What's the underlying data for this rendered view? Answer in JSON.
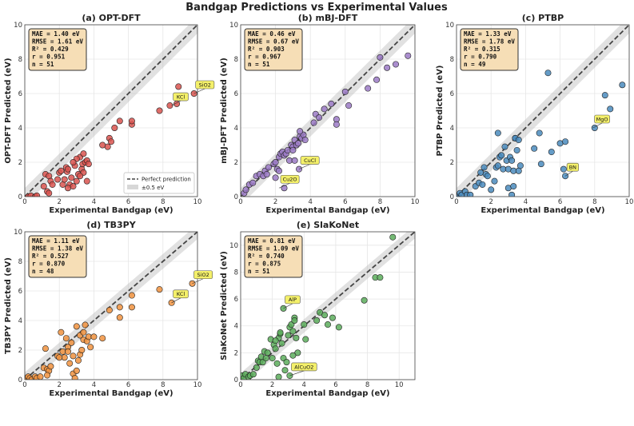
{
  "figure_title": "Bandgap Predictions vs Experimental Values",
  "legend": {
    "perfect": "Perfect prediction",
    "band": "±0.5 eV"
  },
  "chart_data": [
    {
      "type": "scatter",
      "title": "(a) OPT-DFT",
      "xlabel": "Experimental Bandgap (eV)",
      "ylabel": "OPT-DFT Predicted (eV)",
      "xlim": [
        0,
        10
      ],
      "ylim": [
        0,
        10
      ],
      "xticks": [
        0,
        2,
        4,
        6,
        8,
        10
      ],
      "yticks": [
        0,
        2,
        4,
        6,
        8,
        10
      ],
      "color": "#d9534f",
      "stats": [
        "MAE = 1.40 eV",
        "RMSE = 1.61 eV",
        "R² = 0.429",
        "r = 0.951",
        "n = 51"
      ],
      "points": [
        [
          0.2,
          0.0
        ],
        [
          0.35,
          0.05
        ],
        [
          0.6,
          0.0
        ],
        [
          0.7,
          0.05
        ],
        [
          1.1,
          0.6
        ],
        [
          1.3,
          0.3
        ],
        [
          1.4,
          0.2
        ],
        [
          1.2,
          1.3
        ],
        [
          1.4,
          1.2
        ],
        [
          1.5,
          0.9
        ],
        [
          1.6,
          0.7
        ],
        [
          2.0,
          1.4
        ],
        [
          2.1,
          1.5
        ],
        [
          2.2,
          0.7
        ],
        [
          2.3,
          1.0
        ],
        [
          2.4,
          1.7
        ],
        [
          2.45,
          1.45
        ],
        [
          2.5,
          1.6
        ],
        [
          2.6,
          0.7
        ],
        [
          2.7,
          1.1
        ],
        [
          2.8,
          0.6
        ],
        [
          2.9,
          1.8
        ],
        [
          3.0,
          0.9
        ],
        [
          3.1,
          1.3
        ],
        [
          3.2,
          2.3
        ],
        [
          3.3,
          1.6
        ],
        [
          3.35,
          1.9
        ],
        [
          3.4,
          1.4
        ],
        [
          3.5,
          2.0
        ],
        [
          3.6,
          2.1
        ],
        [
          3.7,
          1.9
        ],
        [
          3.0,
          2.2
        ],
        [
          2.8,
          2.0
        ],
        [
          3.4,
          2.5
        ],
        [
          3.2,
          1.2
        ],
        [
          3.6,
          0.9
        ],
        [
          2.5,
          0.5
        ],
        [
          1.9,
          1.0
        ],
        [
          4.9,
          3.4
        ],
        [
          5.2,
          4.0
        ],
        [
          5.5,
          4.4
        ],
        [
          6.2,
          4.2
        ],
        [
          6.2,
          4.4
        ],
        [
          4.8,
          2.9
        ],
        [
          7.8,
          5.0
        ],
        [
          8.4,
          5.3
        ],
        [
          8.8,
          5.4
        ],
        [
          8.9,
          6.4
        ],
        [
          9.8,
          6.0
        ],
        [
          4.5,
          3.0
        ],
        [
          5.0,
          3.2
        ]
      ],
      "callouts": [
        {
          "text": "KCl",
          "x": 8.5,
          "y": 5.3
        },
        {
          "text": "SiO2",
          "x": 9.8,
          "y": 6.0
        }
      ],
      "show_legend": true
    },
    {
      "type": "scatter",
      "title": "(b) mBJ-DFT",
      "xlabel": "Experimental Bandgap (eV)",
      "ylabel": "mBJ-DFT Predicted (eV)",
      "xlim": [
        0,
        10
      ],
      "ylim": [
        0,
        10
      ],
      "xticks": [
        0,
        2,
        4,
        6,
        8,
        10
      ],
      "yticks": [
        0,
        2,
        4,
        6,
        8,
        10
      ],
      "color": "#9b7ac6",
      "stats": [
        "MAE = 0.46 eV",
        "RMSE = 0.67 eV",
        "R² = 0.903",
        "r = 0.967",
        "n = 51"
      ],
      "points": [
        [
          0.2,
          0.2
        ],
        [
          0.3,
          0.4
        ],
        [
          0.5,
          0.7
        ],
        [
          0.7,
          0.8
        ],
        [
          0.9,
          1.2
        ],
        [
          1.1,
          1.3
        ],
        [
          1.3,
          1.2
        ],
        [
          1.4,
          1.5
        ],
        [
          1.6,
          1.7
        ],
        [
          1.9,
          1.9
        ],
        [
          2.0,
          2.0
        ],
        [
          2.1,
          1.6
        ],
        [
          2.2,
          2.3
        ],
        [
          2.3,
          2.5
        ],
        [
          2.4,
          2.6
        ],
        [
          2.5,
          2.4
        ],
        [
          2.6,
          2.5
        ],
        [
          2.7,
          2.7
        ],
        [
          2.8,
          2.1
        ],
        [
          2.9,
          3.0
        ],
        [
          3.0,
          2.9
        ],
        [
          3.1,
          3.3
        ],
        [
          3.2,
          3.0
        ],
        [
          3.3,
          3.1
        ],
        [
          3.4,
          3.5
        ],
        [
          3.5,
          3.4
        ],
        [
          3.6,
          3.6
        ],
        [
          3.7,
          3.3
        ],
        [
          3.1,
          2.1
        ],
        [
          3.35,
          1.6
        ],
        [
          2.5,
          0.5
        ],
        [
          1.5,
          1.3
        ],
        [
          2.0,
          1.1
        ],
        [
          3.0,
          2.7
        ],
        [
          3.4,
          3.8
        ],
        [
          4.3,
          4.8
        ],
        [
          4.2,
          4.3
        ],
        [
          4.8,
          5.1
        ],
        [
          5.2,
          5.4
        ],
        [
          5.5,
          4.5
        ],
        [
          5.5,
          4.2
        ],
        [
          6.0,
          6.1
        ],
        [
          6.2,
          5.3
        ],
        [
          7.3,
          6.3
        ],
        [
          7.8,
          6.8
        ],
        [
          8.4,
          7.5
        ],
        [
          8.9,
          7.7
        ],
        [
          9.6,
          8.2
        ],
        [
          8.0,
          8.1
        ],
        [
          4.5,
          4.6
        ],
        [
          2.2,
          1.5
        ]
      ],
      "callouts": [
        {
          "text": "CuCl",
          "x": 3.35,
          "y": 1.6
        },
        {
          "text": "Cu2O",
          "x": 2.2,
          "y": 0.5
        }
      ],
      "show_legend": false
    },
    {
      "type": "scatter",
      "title": "(c) PTBP",
      "xlabel": "Experimental Bandgap (eV)",
      "ylabel": "PTBP Predicted (eV)",
      "xlim": [
        0,
        10
      ],
      "ylim": [
        0,
        10
      ],
      "xticks": [
        0,
        2,
        4,
        6,
        8,
        10
      ],
      "yticks": [
        0,
        2,
        4,
        6,
        8,
        10
      ],
      "color": "#4a8bbd",
      "stats": [
        "MAE = 1.33 eV",
        "RMSE = 1.78 eV",
        "R² = 0.315",
        "r = 0.790",
        "n = 49"
      ],
      "points": [
        [
          0.1,
          0.0
        ],
        [
          0.2,
          0.2
        ],
        [
          0.3,
          0.1
        ],
        [
          0.5,
          0.3
        ],
        [
          0.6,
          0.1
        ],
        [
          0.8,
          0.1
        ],
        [
          1.1,
          0.6
        ],
        [
          1.3,
          0.8
        ],
        [
          1.4,
          1.4
        ],
        [
          1.5,
          0.7
        ],
        [
          1.6,
          1.7
        ],
        [
          1.7,
          1.3
        ],
        [
          1.8,
          1.2
        ],
        [
          2.0,
          0.4
        ],
        [
          2.3,
          1.7
        ],
        [
          2.4,
          1.8
        ],
        [
          2.5,
          2.3
        ],
        [
          2.6,
          2.4
        ],
        [
          2.7,
          1.6
        ],
        [
          2.8,
          2.9
        ],
        [
          2.9,
          2.1
        ],
        [
          3.0,
          1.6
        ],
        [
          3.1,
          2.3
        ],
        [
          3.2,
          2.1
        ],
        [
          3.3,
          1.5
        ],
        [
          3.4,
          3.4
        ],
        [
          3.5,
          2.7
        ],
        [
          3.6,
          1.5
        ],
        [
          3.7,
          1.8
        ],
        [
          3.0,
          0.5
        ],
        [
          3.2,
          0.1
        ],
        [
          3.3,
          0.6
        ],
        [
          2.2,
          0.9
        ],
        [
          2.4,
          3.7
        ],
        [
          3.4,
          3.4
        ],
        [
          3.6,
          3.3
        ],
        [
          4.5,
          2.8
        ],
        [
          4.8,
          3.7
        ],
        [
          5.5,
          2.6
        ],
        [
          5.3,
          7.2
        ],
        [
          6.0,
          3.1
        ],
        [
          6.3,
          3.2
        ],
        [
          6.2,
          1.6
        ],
        [
          6.3,
          1.2
        ],
        [
          8.0,
          4.0
        ],
        [
          8.6,
          5.9
        ],
        [
          8.9,
          5.1
        ],
        [
          9.6,
          6.5
        ],
        [
          4.9,
          1.9
        ]
      ],
      "callouts": [
        {
          "text": "MgO",
          "x": 7.9,
          "y": 4.0
        },
        {
          "text": "BN",
          "x": 6.3,
          "y": 1.2
        }
      ],
      "show_legend": false
    },
    {
      "type": "scatter",
      "title": "(d) TB3PY",
      "xlabel": "Experimental Bandgap (eV)",
      "ylabel": "TB3PY Predicted (eV)",
      "xlim": [
        0,
        10
      ],
      "ylim": [
        0,
        10
      ],
      "xticks": [
        0,
        2,
        4,
        6,
        8,
        10
      ],
      "yticks": [
        0,
        2,
        4,
        6,
        8,
        10
      ],
      "color": "#f0923e",
      "stats": [
        "MAE = 1.11 eV",
        "RMSE = 1.38 eV",
        "R² = 0.527",
        "r = 0.870",
        "n = 48"
      ],
      "points": [
        [
          0.1,
          0.1
        ],
        [
          0.2,
          0.2
        ],
        [
          0.3,
          0.1
        ],
        [
          0.4,
          0.0
        ],
        [
          0.6,
          0.2
        ],
        [
          0.7,
          0.1
        ],
        [
          0.9,
          0.2
        ],
        [
          1.1,
          0.8
        ],
        [
          1.2,
          2.1
        ],
        [
          1.3,
          0.7
        ],
        [
          1.4,
          0.6
        ],
        [
          1.5,
          0.9
        ],
        [
          1.9,
          1.6
        ],
        [
          2.1,
          3.2
        ],
        [
          2.2,
          1.9
        ],
        [
          2.3,
          1.5
        ],
        [
          2.4,
          2.8
        ],
        [
          2.5,
          2.2
        ],
        [
          2.6,
          1.1
        ],
        [
          2.7,
          2.5
        ],
        [
          2.8,
          0.4
        ],
        [
          2.9,
          0.1
        ],
        [
          3.0,
          0.6
        ],
        [
          3.1,
          1.3
        ],
        [
          3.2,
          1.7
        ],
        [
          3.3,
          2.0
        ],
        [
          3.4,
          2.7
        ],
        [
          3.5,
          3.7
        ],
        [
          3.6,
          2.6
        ],
        [
          3.7,
          2.9
        ],
        [
          3.8,
          2.2
        ],
        [
          3.2,
          3.0
        ],
        [
          2.5,
          1.9
        ],
        [
          3.0,
          3.6
        ],
        [
          3.4,
          3.2
        ],
        [
          4.0,
          2.9
        ],
        [
          4.5,
          2.8
        ],
        [
          4.9,
          4.7
        ],
        [
          5.5,
          4.2
        ],
        [
          5.5,
          4.9
        ],
        [
          6.2,
          4.9
        ],
        [
          6.2,
          5.7
        ],
        [
          7.8,
          6.1
        ],
        [
          8.5,
          5.2
        ],
        [
          9.7,
          6.5
        ],
        [
          2.0,
          1.5
        ],
        [
          1.3,
          0.3
        ],
        [
          2.8,
          1.6
        ]
      ],
      "callouts": [
        {
          "text": "KCl",
          "x": 8.5,
          "y": 5.2
        },
        {
          "text": "SiO2",
          "x": 9.7,
          "y": 6.5
        }
      ],
      "show_legend": false
    },
    {
      "type": "scatter",
      "title": "(e) SlaKoNet",
      "xlabel": "Experimental Bandgap (eV)",
      "ylabel": "SlaKoNet Predicted (eV)",
      "xlim": [
        0,
        11
      ],
      "ylim": [
        0,
        11
      ],
      "xticks": [
        0,
        2,
        4,
        6,
        8,
        10
      ],
      "yticks": [
        0,
        2,
        4,
        6,
        8,
        10
      ],
      "color": "#5cad5c",
      "stats": [
        "MAE = 0.81 eV",
        "RMSE = 1.09 eV",
        "R² = 0.740",
        "r = 0.875",
        "n = 51"
      ],
      "points": [
        [
          0.1,
          0.3
        ],
        [
          0.2,
          0.1
        ],
        [
          0.3,
          0.4
        ],
        [
          0.5,
          0.2
        ],
        [
          0.6,
          0.3
        ],
        [
          0.8,
          0.4
        ],
        [
          1.0,
          0.9
        ],
        [
          1.1,
          1.4
        ],
        [
          1.2,
          1.3
        ],
        [
          1.3,
          1.7
        ],
        [
          1.4,
          1.3
        ],
        [
          1.5,
          2.1
        ],
        [
          1.7,
          2.0
        ],
        [
          1.9,
          3.0
        ],
        [
          2.0,
          1.6
        ],
        [
          2.1,
          2.6
        ],
        [
          2.2,
          2.3
        ],
        [
          2.3,
          1.2
        ],
        [
          2.4,
          3.1
        ],
        [
          2.5,
          3.4
        ],
        [
          2.6,
          2.7
        ],
        [
          2.7,
          1.6
        ],
        [
          2.8,
          0.7
        ],
        [
          2.9,
          1.3
        ],
        [
          3.0,
          3.3
        ],
        [
          3.1,
          3.9
        ],
        [
          3.2,
          4.1
        ],
        [
          3.3,
          3.6
        ],
        [
          3.4,
          4.6
        ],
        [
          3.5,
          3.1
        ],
        [
          3.6,
          2.0
        ],
        [
          2.7,
          5.3
        ],
        [
          2.5,
          3.5
        ],
        [
          3.1,
          0.3
        ],
        [
          2.4,
          0.2
        ],
        [
          3.3,
          1.8
        ],
        [
          4.1,
          3.0
        ],
        [
          4.8,
          4.4
        ],
        [
          5.0,
          5.0
        ],
        [
          5.3,
          4.8
        ],
        [
          5.5,
          4.1
        ],
        [
          5.8,
          4.6
        ],
        [
          6.2,
          3.9
        ],
        [
          7.8,
          5.9
        ],
        [
          8.5,
          7.6
        ],
        [
          8.8,
          7.6
        ],
        [
          9.6,
          10.6
        ],
        [
          4.0,
          4.1
        ],
        [
          1.6,
          1.6
        ],
        [
          3.4,
          4.4
        ],
        [
          2.2,
          2.9
        ]
      ],
      "callouts": [
        {
          "text": "AlP",
          "x": 2.7,
          "y": 5.3
        },
        {
          "text": "AlCuO2",
          "x": 3.1,
          "y": 0.3
        }
      ],
      "show_legend": false
    }
  ]
}
